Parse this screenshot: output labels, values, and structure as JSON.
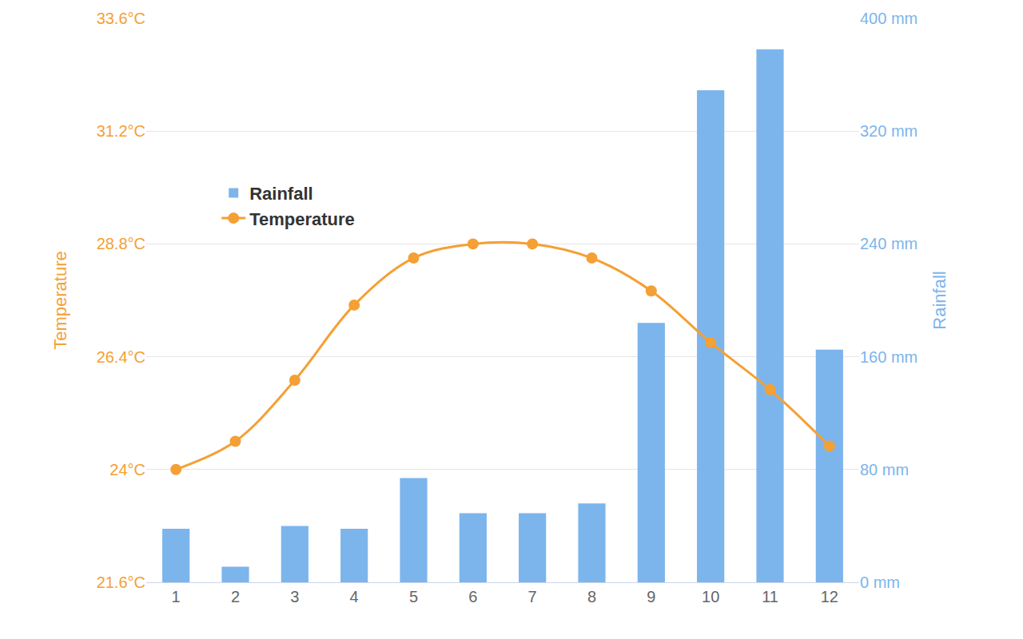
{
  "chart_data": {
    "type": "bar",
    "categories": [
      "1",
      "2",
      "3",
      "4",
      "5",
      "6",
      "7",
      "8",
      "9",
      "10",
      "11",
      "12"
    ],
    "series": [
      {
        "name": "Rainfall",
        "type": "bar",
        "color": "#7cb5ec",
        "axis": "y2",
        "values": [
          38,
          11,
          40,
          38,
          74,
          49,
          49,
          56,
          184,
          349,
          378,
          165
        ]
      },
      {
        "name": "Temperature",
        "type": "line",
        "color": "#f4a035",
        "marker": "circle",
        "line_style": "smooth",
        "values": [
          24.0,
          24.6,
          25.9,
          27.5,
          28.5,
          28.8,
          28.8,
          28.5,
          27.8,
          26.7,
          25.7,
          24.5
        ]
      }
    ],
    "y_label": "Temperature",
    "y2_label": "Rainfall",
    "ylim": [
      21.6,
      33.6
    ],
    "yticks": [
      {
        "value": 21.6,
        "label": "21.6°C"
      },
      {
        "value": 24,
        "label": "24°C"
      },
      {
        "value": 26.4,
        "label": "26.4°C"
      },
      {
        "value": 28.8,
        "label": "28.8°C"
      },
      {
        "value": 31.2,
        "label": "31.2°C"
      },
      {
        "value": 33.6,
        "label": "33.6°C"
      }
    ],
    "y2lim": [
      0,
      400
    ],
    "y2ticks": [
      {
        "value": 0,
        "label": "0 mm"
      },
      {
        "value": 80,
        "label": "80 mm"
      },
      {
        "value": 160,
        "label": "160 mm"
      },
      {
        "value": 240,
        "label": "240 mm"
      },
      {
        "value": 320,
        "label": "320 mm"
      },
      {
        "value": 400,
        "label": "400 mm"
      }
    ],
    "grid": true,
    "legend": "top left"
  }
}
